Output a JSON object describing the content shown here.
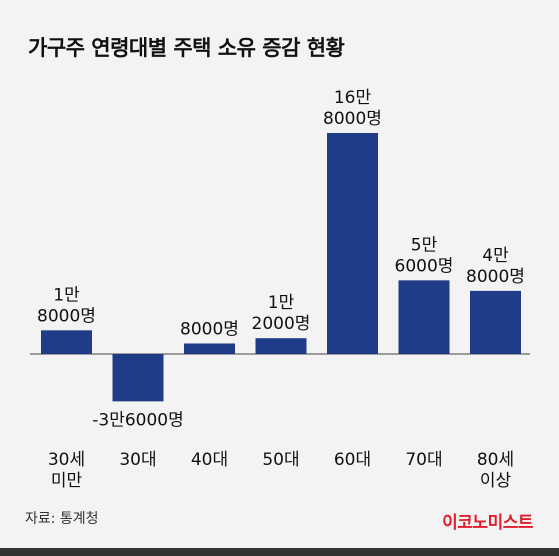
{
  "title": "가구주 연령대별 주택 소유 증감 현황",
  "source": "자료: 통계청",
  "brand": "이코노미스트",
  "colors": {
    "bar": "#1f3c88",
    "background": "#f3f3f3",
    "brand": "#e01e2b",
    "axis": "#444444"
  },
  "chart_data": {
    "type": "bar",
    "title": "가구주 연령대별 주택 소유 증감 현황",
    "categories": [
      [
        "30세",
        "미만"
      ],
      [
        "30대"
      ],
      [
        "40대"
      ],
      [
        "50대"
      ],
      [
        "60대"
      ],
      [
        "70대"
      ],
      [
        "80세",
        "이상"
      ]
    ],
    "values": [
      18000,
      -36000,
      8000,
      12000,
      168000,
      56000,
      48000
    ],
    "data_labels": [
      [
        "1만",
        "8000명"
      ],
      [
        "-3만6000명"
      ],
      [
        "8000명"
      ],
      [
        "1만",
        "2000명"
      ],
      [
        "16만",
        "8000명"
      ],
      [
        "5만",
        "6000명"
      ],
      [
        "4만",
        "8000명"
      ]
    ],
    "unit": "명",
    "ylim": [
      -36000,
      168000
    ],
    "grid": false,
    "legend": "none"
  }
}
